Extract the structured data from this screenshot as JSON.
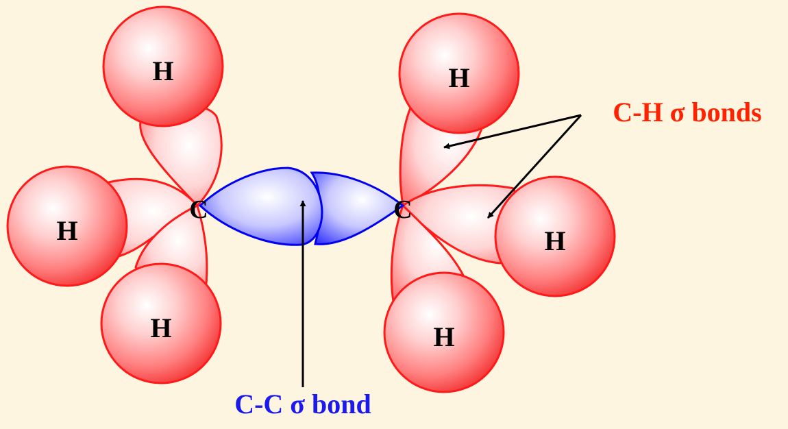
{
  "labels": {
    "hydrogen": "H",
    "carbon": "C",
    "ch_bonds": "C-H σ bonds",
    "cc_bond": "C-C σ bond"
  },
  "colors": {
    "background": "#fdf5e0",
    "hydrogen_outline": "#ff1a1a",
    "ch_lobe_outline": "#ff1a1a",
    "cc_lobe_outline": "#0000ee",
    "ch_label": "#ff2200",
    "cc_label": "#1a1aee",
    "arrow": "#000000"
  }
}
